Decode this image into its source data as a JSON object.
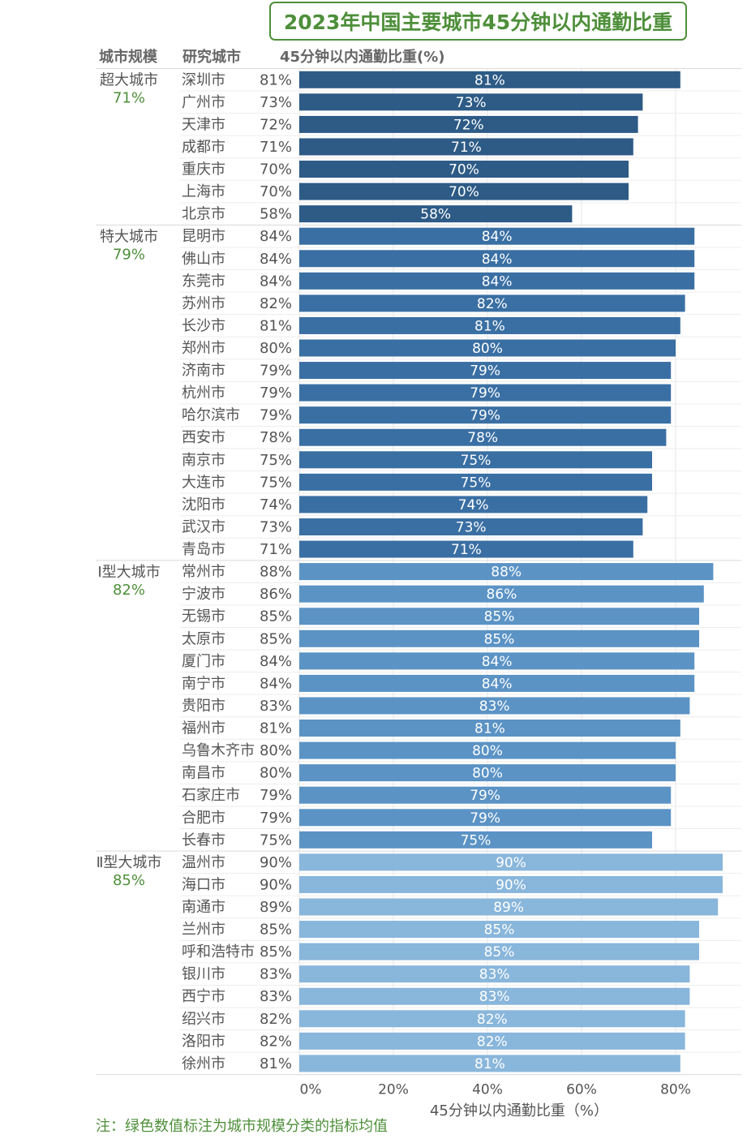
{
  "title": "2023年中国主要城市45分钟以内通勤比重",
  "headers": {
    "category": "城市规模",
    "city": "研究城市",
    "percent": "45分钟以内通勤比重(%)"
  },
  "note": "注：绿色数值标注为城市规模分类的指标均值",
  "colors": {
    "title_green": "#4e8f3a",
    "avg_green": "#4e8f3a",
    "group_colors": [
      "#2d5b86",
      "#3a6fa3",
      "#5b93c5",
      "#89b6db"
    ]
  },
  "chart_data": {
    "type": "bar",
    "orientation": "horizontal",
    "xlabel": "45分钟以内通勤比重（%）",
    "xlim": [
      0,
      95
    ],
    "xticks": [
      0,
      20,
      40,
      60,
      80
    ],
    "xtick_labels": [
      "0%",
      "20%",
      "40%",
      "60%",
      "80%"
    ],
    "groups": [
      {
        "name": "超大城市",
        "avg": "71%",
        "cities": [
          "深圳市",
          "广州市",
          "天津市",
          "成都市",
          "重庆市",
          "上海市",
          "北京市"
        ],
        "values": [
          81,
          73,
          72,
          71,
          70,
          70,
          58
        ]
      },
      {
        "name": "特大城市",
        "avg": "79%",
        "cities": [
          "昆明市",
          "佛山市",
          "东莞市",
          "苏州市",
          "长沙市",
          "郑州市",
          "济南市",
          "杭州市",
          "哈尔滨市",
          "西安市",
          "南京市",
          "大连市",
          "沈阳市",
          "武汉市",
          "青岛市"
        ],
        "values": [
          84,
          84,
          84,
          82,
          81,
          80,
          79,
          79,
          79,
          78,
          75,
          75,
          74,
          73,
          71
        ]
      },
      {
        "name": "Ⅰ型大城市",
        "avg": "82%",
        "cities": [
          "常州市",
          "宁波市",
          "无锡市",
          "太原市",
          "厦门市",
          "南宁市",
          "贵阳市",
          "福州市",
          "乌鲁木齐市",
          "南昌市",
          "石家庄市",
          "合肥市",
          "长春市"
        ],
        "values": [
          88,
          86,
          85,
          85,
          84,
          84,
          83,
          81,
          80,
          80,
          79,
          79,
          75
        ]
      },
      {
        "name": "Ⅱ型大城市",
        "avg": "85%",
        "cities": [
          "温州市",
          "海口市",
          "南通市",
          "兰州市",
          "呼和浩特市",
          "银川市",
          "西宁市",
          "绍兴市",
          "洛阳市",
          "徐州市"
        ],
        "values": [
          90,
          90,
          89,
          85,
          85,
          83,
          83,
          82,
          82,
          81
        ]
      }
    ]
  }
}
